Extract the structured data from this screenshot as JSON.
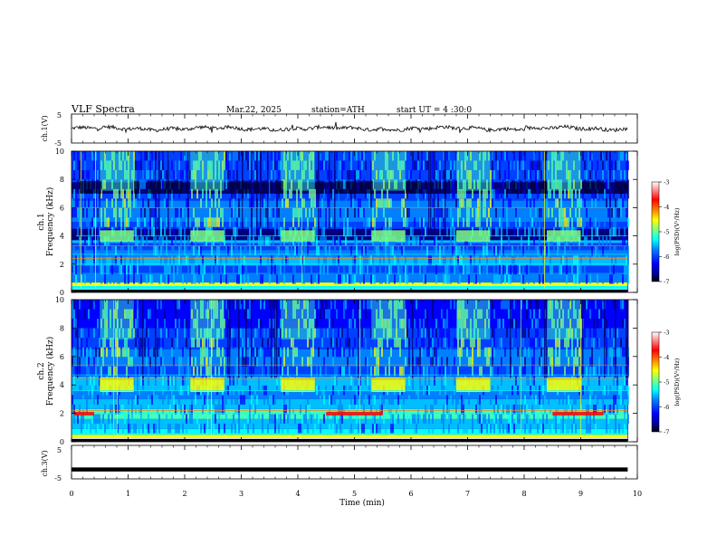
{
  "header": {
    "title": "VLF  Spectra",
    "date": "Mar.22, 2025",
    "station": "station=ATH",
    "start": "start  UT  =   4  :30:0"
  },
  "chart_data": [
    {
      "type": "line",
      "panel": "ch1-waveform",
      "ylabel": "ch.1(V)",
      "ylim": [
        -5,
        5
      ],
      "yticks": [
        "5",
        "-5"
      ],
      "trace_level": 0,
      "trace_amplitude": 0.8,
      "color": "#000000"
    },
    {
      "type": "heatmap",
      "panel": "ch1-spectrogram",
      "ylabel_top": "ch.1",
      "ylabel": "Frequency (kHz)",
      "ylim": [
        0,
        10
      ],
      "yticks": [
        "0",
        "2",
        "4",
        "6",
        "8",
        "10"
      ],
      "green_blocks_min": [
        [
          0.5,
          1.1
        ],
        [
          2.1,
          2.7
        ],
        [
          3.7,
          4.3
        ],
        [
          5.3,
          5.9
        ],
        [
          6.8,
          7.4
        ],
        [
          8.4,
          9.0
        ]
      ],
      "colorbar": {
        "label": "log(PSD)(V²/Hz)",
        "ticks": [
          "-3",
          "-4",
          "-5",
          "-6",
          "-7"
        ],
        "range": [
          -7,
          -3
        ]
      }
    },
    {
      "type": "heatmap",
      "panel": "ch2-spectrogram",
      "ylabel_top": "ch.2",
      "ylabel": "Frequency (kHz)",
      "ylim": [
        0,
        10
      ],
      "yticks": [
        "0",
        "2",
        "4",
        "6",
        "8",
        "10"
      ],
      "green_blocks_min": [
        [
          0.5,
          1.1
        ],
        [
          2.1,
          2.7
        ],
        [
          3.7,
          4.3
        ],
        [
          5.3,
          5.9
        ],
        [
          6.8,
          7.4
        ],
        [
          8.4,
          9.0
        ]
      ],
      "colorbar": {
        "label": "log(PSD)(V²/Hz)",
        "ticks": [
          "-3",
          "-4",
          "-5",
          "-6",
          "-7"
        ],
        "range": [
          -7,
          -3
        ]
      }
    },
    {
      "type": "line",
      "panel": "ch3-waveform",
      "ylabel": "ch.3(V)",
      "ylim": [
        -5,
        5
      ],
      "yticks": [
        "5",
        "-5"
      ],
      "trace_level": -2.2,
      "color": "#000000"
    }
  ],
  "xaxis": {
    "label": "Time  (min)",
    "ticks": [
      "0",
      "1",
      "2",
      "3",
      "4",
      "5",
      "6",
      "7",
      "8",
      "9",
      "10"
    ],
    "xlim": [
      0,
      10
    ],
    "data_end": 9.83
  },
  "colors": [
    "#00007f",
    "#0000ff",
    "#0080ff",
    "#00ffff",
    "#80ff80",
    "#ffff00",
    "#ff8000",
    "#ff0000",
    "#ffffff"
  ]
}
